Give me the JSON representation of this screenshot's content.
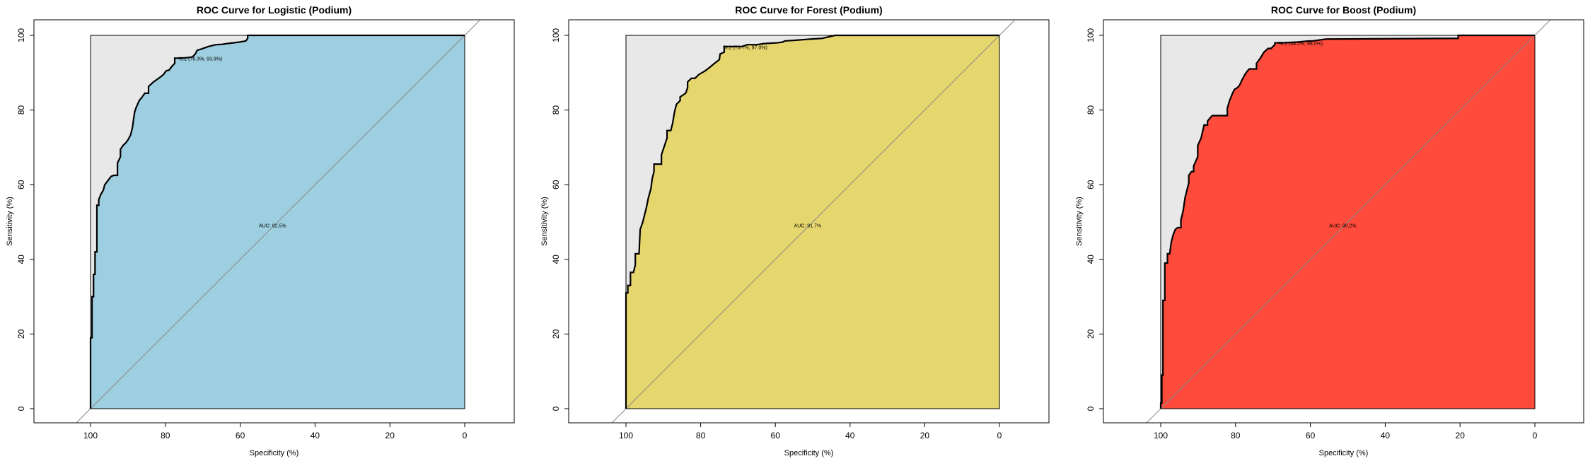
{
  "chart_data": [
    {
      "type": "area",
      "title": "ROC Curve for Logistic (Podium)",
      "xlabel": "Specificity (%)",
      "ylabel": "Sensitivity (%)",
      "xlim": [
        100,
        0
      ],
      "ylim": [
        0,
        100
      ],
      "x_ticks": [
        "100",
        "80",
        "60",
        "40",
        "20",
        "0"
      ],
      "y_ticks": [
        "0",
        "20",
        "40",
        "60",
        "80",
        "100"
      ],
      "fill_color": "#9ecfe0",
      "auc_label": "AUC: 92.5%",
      "auc_pos": [
        55,
        49
      ],
      "threshold_label": "0.2 (76.3%, 93.9%)",
      "threshold_point": [
        76.3,
        93.9
      ],
      "curve": {
        "specificity": [
          100,
          100,
          99.6,
          99.6,
          99.2,
          99.2,
          98.8,
          98.8,
          98.3,
          98.3,
          97.8,
          97.8,
          97.2,
          96.6,
          96.2,
          95.8,
          95.2,
          94.5,
          93.8,
          92.8,
          92.8,
          92,
          92,
          91.3,
          90.5,
          90,
          89.3,
          88.8,
          88.5,
          88.2,
          87.8,
          87,
          86.2,
          85.5,
          84.5,
          84.5,
          83.2,
          81.8,
          80.5,
          79.8,
          79,
          78.2,
          77.5,
          77.5,
          75.8,
          74.5,
          72.8,
          72,
          71.5,
          70.5,
          68.5,
          66.5,
          64.8,
          63.5,
          60.2,
          58.5,
          58,
          58,
          55,
          0
        ],
        "sensitivity": [
          0,
          19,
          19,
          30,
          30,
          36,
          36,
          42,
          42,
          54.5,
          54.5,
          56,
          57.5,
          58.5,
          60,
          60.5,
          61.3,
          62.2,
          62.5,
          62.5,
          65.8,
          67.5,
          69.5,
          70.5,
          71.3,
          72,
          73.3,
          75.3,
          77.5,
          79.5,
          80.7,
          82.5,
          83.5,
          84.5,
          84.5,
          86.3,
          87.5,
          88.5,
          89.5,
          90.5,
          90.7,
          91.8,
          92.5,
          93.9,
          93.9,
          94,
          94.2,
          95,
          96,
          96.3,
          97,
          97.5,
          97.6,
          97.8,
          98.2,
          98.5,
          99.2,
          100,
          100,
          100
        ]
      }
    },
    {
      "type": "area",
      "title": "ROC Curve for Forest (Podium)",
      "xlabel": "Specificity (%)",
      "ylabel": "Sensitivity (%)",
      "xlim": [
        100,
        0
      ],
      "ylim": [
        0,
        100
      ],
      "x_ticks": [
        "100",
        "80",
        "60",
        "40",
        "20",
        "0"
      ],
      "y_ticks": [
        "0",
        "20",
        "40",
        "60",
        "80",
        "100"
      ],
      "fill_color": "#e6d66e",
      "auc_label": "AUC: 91.7%",
      "auc_pos": [
        55,
        49
      ],
      "threshold_label": "0.2 (73.7%, 97.0%)",
      "threshold_point": [
        73.7,
        97.0
      ],
      "curve": {
        "specificity": [
          100,
          100,
          99.5,
          99.5,
          98.8,
          98.8,
          98,
          97.5,
          97.5,
          96.5,
          96.2,
          95.5,
          95,
          94.5,
          94,
          93.3,
          93,
          92.5,
          92.5,
          91.5,
          90.5,
          90.5,
          89,
          89,
          88,
          87.5,
          87,
          86.5,
          85.5,
          85.5,
          84,
          83.5,
          83.5,
          82.5,
          81.5,
          80.5,
          78.8,
          77.5,
          76.3,
          75,
          74.8,
          73.7,
          73.7,
          69,
          67.5,
          65,
          63,
          59.5,
          58,
          57.5,
          54.5,
          50.5,
          47.5,
          44,
          0
        ],
        "sensitivity": [
          0,
          31,
          31,
          33,
          33,
          36.5,
          36.5,
          38.5,
          41.5,
          41.5,
          48,
          50,
          52,
          54,
          56.5,
          59,
          61.5,
          63.5,
          65.5,
          65.5,
          65.5,
          68,
          72.5,
          74.5,
          74.5,
          76.5,
          79.5,
          81.5,
          82.5,
          83.5,
          84.5,
          86,
          87.5,
          88.5,
          88.5,
          89.5,
          90.5,
          91.5,
          92.5,
          93.5,
          95,
          95.5,
          97,
          97,
          97.5,
          97.5,
          97.8,
          98,
          98.2,
          98.5,
          98.7,
          99,
          99.2,
          100,
          100
        ]
      }
    },
    {
      "type": "area",
      "title": "ROC Curve for Boost (Podium)",
      "xlabel": "Specificity (%)",
      "ylabel": "Sensitivity (%)",
      "xlim": [
        100,
        0
      ],
      "ylim": [
        0,
        100
      ],
      "x_ticks": [
        "100",
        "80",
        "60",
        "40",
        "20",
        "0"
      ],
      "y_ticks": [
        "0",
        "20",
        "40",
        "60",
        "80",
        "100"
      ],
      "fill_color": "#fe4b3b",
      "auc_label": "AUC: 90.2%",
      "auc_pos": [
        55,
        49
      ],
      "threshold_label": "0.1 (68.2%, 98.0%)",
      "threshold_point": [
        68.2,
        98.0
      ],
      "curve": {
        "specificity": [
          100,
          100,
          99.7,
          99.7,
          99.4,
          99.4,
          98.9,
          98.9,
          98.2,
          98.2,
          97.6,
          97.2,
          96.7,
          96.1,
          95.5,
          94.6,
          94.6,
          94,
          93.5,
          92.5,
          92.5,
          91.8,
          91.2,
          91.2,
          90.1,
          90.1,
          89.2,
          88.4,
          88.1,
          87.5,
          87.5,
          86.7,
          86.2,
          85.7,
          85.2,
          84.4,
          83.6,
          82.2,
          82.2,
          81.6,
          80.8,
          80.3,
          79.5,
          79,
          78.3,
          77.5,
          76.8,
          76.3,
          74.4,
          74.4,
          73.3,
          72.4,
          71.3,
          70.5,
          69.5,
          69.5,
          67.6,
          63.5,
          60.5,
          59.5,
          55.7,
          55.7,
          20.5,
          20.5,
          0
        ],
        "sensitivity": [
          0,
          1.5,
          1.5,
          9,
          9,
          29,
          29,
          39,
          39,
          41.5,
          41.5,
          44.5,
          46.5,
          48,
          48.5,
          48.5,
          50.5,
          53,
          56.5,
          60.5,
          62.5,
          63.5,
          63.5,
          65,
          67.5,
          70.5,
          72.5,
          76,
          76,
          76,
          77,
          78,
          78.5,
          78.5,
          78.5,
          78.5,
          78.5,
          78.5,
          80.5,
          82.5,
          84.5,
          85.5,
          86,
          86.5,
          88,
          89.5,
          90.5,
          91,
          91,
          92.5,
          94,
          95.5,
          96.5,
          96.5,
          97.5,
          98,
          98,
          98.2,
          98.5,
          98.5,
          99,
          99,
          99.2,
          100,
          100
        ]
      }
    }
  ]
}
